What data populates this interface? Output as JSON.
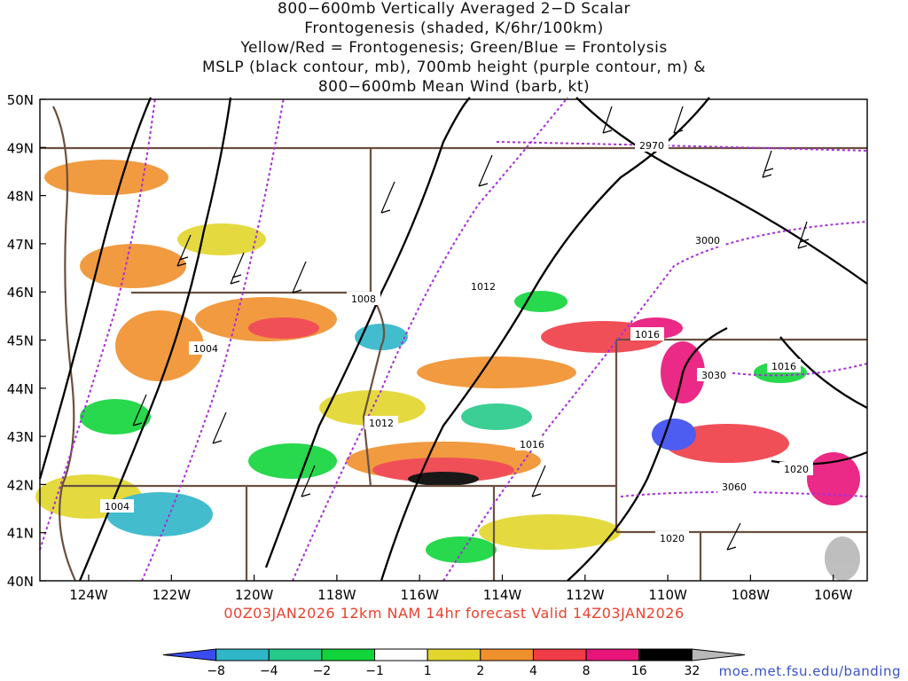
{
  "title_lines": [
    "800−600mb Vertically Averaged 2−D Scalar",
    "Frontogenesis (shaded, K/6hr/100km)",
    "Yellow/Red = Frontogenesis;  Green/Blue = Frontolysis",
    "MSLP (black contour, mb), 700mb height (purple contour, m) &",
    "800−600mb Mean Wind (barb, kt)"
  ],
  "subtitle": "00Z03JAN2026 12km NAM 14hr forecast Valid 14Z03JAN2026",
  "credit": "moe.met.fsu.edu/banding",
  "lat_labels": [
    "50N",
    "49N",
    "48N",
    "47N",
    "46N",
    "45N",
    "44N",
    "43N",
    "42N",
    "41N",
    "40N"
  ],
  "lon_labels": [
    "124W",
    "122W",
    "120W",
    "118W",
    "116W",
    "114W",
    "112W",
    "110W",
    "108W",
    "106W"
  ],
  "colorbar": {
    "labels": [
      "−8",
      "−4",
      "−2",
      "−1",
      "1",
      "2",
      "4",
      "8",
      "16",
      "32"
    ],
    "colors": [
      "#3a4cf0",
      "#2fb6c8",
      "#26c98a",
      "#11d43a",
      "#ffffff",
      "#e2d62c",
      "#f0902c",
      "#f03c46",
      "#e8147a",
      "#000000",
      "#b8b8b8"
    ]
  },
  "isobars": [
    {
      "label": "1004"
    },
    {
      "label": "1008"
    },
    {
      "label": "1012"
    },
    {
      "label": "1012"
    },
    {
      "label": "1016"
    },
    {
      "label": "1016"
    },
    {
      "label": "1016"
    },
    {
      "label": "1020"
    },
    {
      "label": "1020"
    },
    {
      "label": "1004"
    }
  ],
  "heights": [
    {
      "label": "2970"
    },
    {
      "label": "3000"
    },
    {
      "label": "3030"
    },
    {
      "label": "3060"
    }
  ]
}
